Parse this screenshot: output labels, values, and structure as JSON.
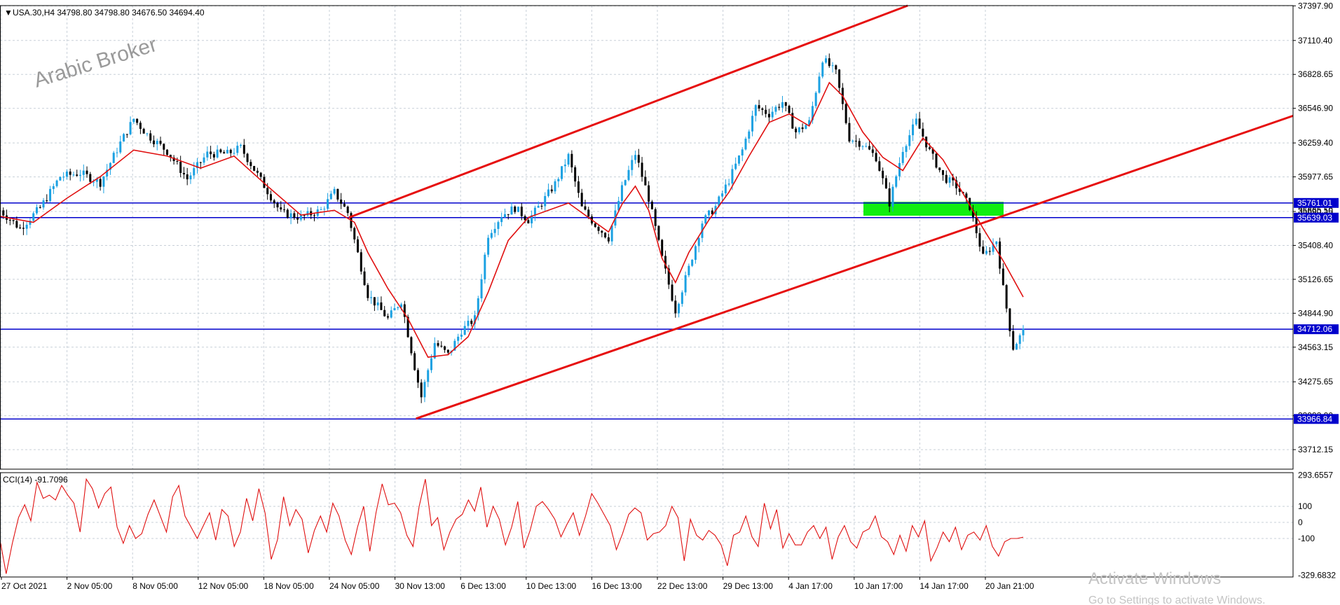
{
  "header": {
    "symbol_line": "USA.30,H4  34798.80 34798.80 34676.50 34694.40",
    "watermark": "Arabic Broker"
  },
  "indicator": {
    "label": "CCI(14) -91.7096"
  },
  "overlay": {
    "activate_title": "Activate Windows",
    "activate_subtitle": "Go to Settings to activate Windows."
  },
  "colors": {
    "bull": "#1ba1e2",
    "bear": "#000000",
    "ma": "#e01010",
    "channel": "#e60f0f",
    "hline": "#0000cc",
    "zone": "#11ee11",
    "cci": "#e01010",
    "grid": "#c8d0d8"
  },
  "chart_data": [
    {
      "type": "candlestick",
      "title": "USA.30,H4",
      "ohlc_last": {
        "open": 34798.8,
        "high": 34798.8,
        "low": 34676.5,
        "close": 34694.4
      },
      "ylim": [
        33550,
        37400
      ],
      "y_ticks": [
        "37397.90",
        "37110.40",
        "36828.65",
        "36546.90",
        "36259.40",
        "35977.65",
        "35690.15",
        "35408.40",
        "35126.65",
        "34844.90",
        "34563.15",
        "34275.65",
        "33993.90",
        "33712.15"
      ],
      "x_ticks": [
        "27 Oct 2021",
        "2 Nov 05:00",
        "8 Nov 05:00",
        "12 Nov 05:00",
        "18 Nov 05:00",
        "24 Nov 05:00",
        "30 Nov 13:00",
        "6 Dec 13:00",
        "10 Dec 13:00",
        "16 Dec 13:00",
        "22 Dec 13:00",
        "29 Dec 13:00",
        "4 Jan 17:00",
        "10 Jan 17:00",
        "14 Jan 17:00",
        "20 Jan 21:00"
      ],
      "horizontal_levels": [
        {
          "value": 35761.01,
          "label": "35761.01"
        },
        {
          "value": 35639.03,
          "label": "35639.03"
        },
        {
          "value": 34712.06,
          "label": "34712.06"
        },
        {
          "value": 33966.84,
          "label": "33966.84"
        }
      ],
      "hidden_label": "35665.50",
      "channel": {
        "upper": [
          {
            "x": "24 Nov 05:00",
            "y": 35640
          },
          {
            "x": "4 Jan 17:00",
            "y": 37400
          }
        ],
        "lower": [
          {
            "x": "30 Nov 13:00",
            "y": 33970
          },
          {
            "x": "20 Jan 21:00",
            "y": 36950
          }
        ]
      },
      "zone": {
        "from": "10 Jan",
        "to": "14 Jan 17:00",
        "y_low": 35655,
        "y_high": 35770
      },
      "price_path": [
        [
          0,
          35700
        ],
        [
          6,
          35550
        ],
        [
          12,
          35720
        ],
        [
          18,
          35980
        ],
        [
          24,
          36010
        ],
        [
          30,
          35930
        ],
        [
          36,
          36260
        ],
        [
          40,
          36460
        ],
        [
          44,
          36330
        ],
        [
          50,
          36190
        ],
        [
          56,
          35960
        ],
        [
          62,
          36170
        ],
        [
          68,
          36170
        ],
        [
          72,
          36220
        ],
        [
          78,
          35950
        ],
        [
          84,
          35680
        ],
        [
          90,
          35640
        ],
        [
          96,
          35700
        ],
        [
          100,
          35850
        ],
        [
          104,
          35680
        ],
        [
          110,
          35000
        ],
        [
          116,
          34800
        ],
        [
          120,
          34950
        ],
        [
          124,
          34400
        ],
        [
          126,
          34150
        ],
        [
          130,
          34600
        ],
        [
          134,
          34500
        ],
        [
          138,
          34700
        ],
        [
          142,
          34800
        ],
        [
          146,
          35500
        ],
        [
          150,
          35660
        ],
        [
          154,
          35720
        ],
        [
          158,
          35620
        ],
        [
          162,
          35760
        ],
        [
          166,
          35920
        ],
        [
          170,
          36150
        ],
        [
          174,
          35720
        ],
        [
          178,
          35580
        ],
        [
          182,
          35470
        ],
        [
          186,
          35880
        ],
        [
          190,
          36170
        ],
        [
          194,
          35800
        ],
        [
          198,
          35300
        ],
        [
          202,
          34870
        ],
        [
          206,
          35220
        ],
        [
          210,
          35600
        ],
        [
          214,
          35730
        ],
        [
          218,
          35950
        ],
        [
          222,
          36200
        ],
        [
          226,
          36560
        ],
        [
          230,
          36500
        ],
        [
          234,
          36600
        ],
        [
          238,
          36350
        ],
        [
          242,
          36430
        ],
        [
          246,
          36960
        ],
        [
          250,
          36840
        ],
        [
          254,
          36300
        ],
        [
          258,
          36250
        ],
        [
          262,
          36140
        ],
        [
          266,
          35760
        ],
        [
          270,
          36210
        ],
        [
          274,
          36440
        ],
        [
          278,
          36190
        ],
        [
          282,
          35980
        ],
        [
          286,
          35900
        ],
        [
          290,
          35730
        ],
        [
          294,
          35310
        ],
        [
          298,
          35450
        ],
        [
          300,
          35050
        ],
        [
          303,
          34560
        ],
        [
          306,
          34694
        ]
      ],
      "ma_path": [
        [
          0,
          35650
        ],
        [
          10,
          35600
        ],
        [
          20,
          35800
        ],
        [
          30,
          35980
        ],
        [
          40,
          36200
        ],
        [
          50,
          36150
        ],
        [
          60,
          36050
        ],
        [
          70,
          36150
        ],
        [
          80,
          35900
        ],
        [
          90,
          35660
        ],
        [
          100,
          35700
        ],
        [
          106,
          35600
        ],
        [
          110,
          35350
        ],
        [
          116,
          35050
        ],
        [
          122,
          34800
        ],
        [
          128,
          34480
        ],
        [
          134,
          34500
        ],
        [
          140,
          34650
        ],
        [
          146,
          35020
        ],
        [
          152,
          35450
        ],
        [
          158,
          35640
        ],
        [
          164,
          35700
        ],
        [
          170,
          35760
        ],
        [
          176,
          35640
        ],
        [
          182,
          35520
        ],
        [
          186,
          35750
        ],
        [
          190,
          35900
        ],
        [
          194,
          35700
        ],
        [
          198,
          35300
        ],
        [
          202,
          35100
        ],
        [
          206,
          35350
        ],
        [
          212,
          35620
        ],
        [
          218,
          35850
        ],
        [
          224,
          36150
        ],
        [
          230,
          36430
        ],
        [
          236,
          36500
        ],
        [
          242,
          36400
        ],
        [
          248,
          36760
        ],
        [
          252,
          36650
        ],
        [
          258,
          36350
        ],
        [
          264,
          36140
        ],
        [
          270,
          36030
        ],
        [
          276,
          36300
        ],
        [
          282,
          36120
        ],
        [
          288,
          35840
        ],
        [
          294,
          35550
        ],
        [
          300,
          35280
        ],
        [
          306,
          34980
        ]
      ]
    },
    {
      "type": "line",
      "title": "CCI(14) -91.7096",
      "ylim": [
        -340,
        310
      ],
      "y_ticks": [
        "293.6557",
        "100",
        "0",
        "-100",
        "-329.6832"
      ],
      "series": [
        {
          "values": [
            -110,
            -320,
            -130,
            30,
            110,
            10,
            250,
            150,
            170,
            140,
            230,
            170,
            120,
            -60,
            270,
            210,
            90,
            180,
            220,
            -30,
            -130,
            -20,
            -100,
            -70,
            50,
            140,
            40,
            -60,
            160,
            230,
            40,
            -30,
            -100,
            -20,
            60,
            -110,
            80,
            40,
            -150,
            -60,
            150,
            10,
            210,
            60,
            -230,
            -110,
            160,
            -20,
            80,
            20,
            -190,
            -50,
            40,
            -60,
            120,
            40,
            -110,
            -200,
            -30,
            100,
            -180,
            60,
            240,
            110,
            120,
            60,
            -80,
            -150,
            100,
            270,
            -20,
            30,
            -170,
            -60,
            20,
            50,
            140,
            70,
            220,
            -30,
            100,
            20,
            -140,
            -30,
            130,
            -160,
            -50,
            100,
            130,
            80,
            20,
            -90,
            -10,
            60,
            -80,
            40,
            180,
            120,
            50,
            -20,
            -170,
            -70,
            50,
            90,
            60,
            -110,
            -70,
            -60,
            -20,
            100,
            30,
            -240,
            20,
            -80,
            -110,
            -50,
            -80,
            -140,
            -270,
            -80,
            -60,
            40,
            -90,
            -150,
            120,
            -40,
            80,
            -160,
            -70,
            -140,
            -140,
            -60,
            -20,
            -100,
            -30,
            -230,
            -90,
            -20,
            -120,
            -160,
            -60,
            -40,
            40,
            -90,
            -120,
            -200,
            -80,
            -180,
            -20,
            -90,
            10,
            -240,
            -160,
            -60,
            -120,
            -30,
            -170,
            -80,
            -60,
            -110,
            -20,
            -150,
            -210,
            -120,
            -100,
            -100,
            -92
          ]
        }
      ]
    }
  ]
}
